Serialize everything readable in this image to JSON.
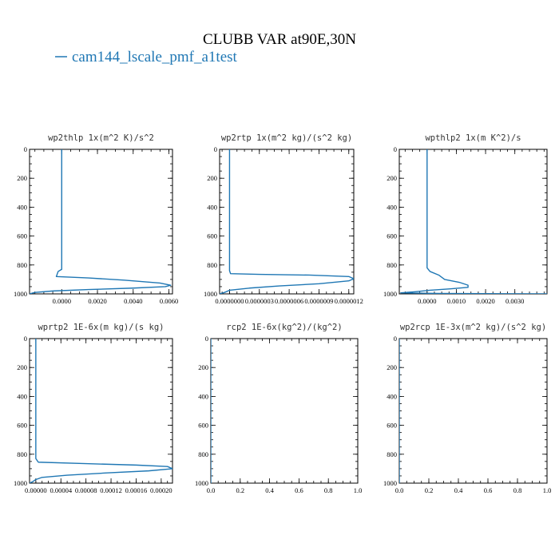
{
  "figure": {
    "title": "CLUBB VAR at90E,30N",
    "legend": [
      {
        "name": "cam144_lscale_pmf_a1test",
        "color": "#1f77b4"
      }
    ]
  },
  "chart_data": [
    {
      "type": "line",
      "title": "wp2thlp  1x(m^2 K)/s^2",
      "xlim": [
        -0.0018,
        0.0062
      ],
      "ylim": [
        0,
        1000
      ],
      "y_inverted": true,
      "xticks": [
        0.0,
        0.002,
        0.004,
        0.006
      ],
      "xticklabels": [
        "0.0000",
        "0.0020",
        "0.0040",
        "0.0060"
      ],
      "yticks": [
        0,
        200,
        400,
        600,
        800,
        1000
      ],
      "yticklabels": [
        "0",
        "200",
        "400",
        "600",
        "800",
        "1000"
      ],
      "series": [
        {
          "color": "#1f77b4",
          "x": [
            0.0,
            0.0,
            0.0,
            0.0,
            -0.0002,
            -0.0003,
            0.0015,
            0.0035,
            0.0055,
            0.0061,
            0.0058,
            0.004,
            0.0015,
            -0.0005,
            -0.0015,
            -0.0018
          ],
          "y": [
            0,
            200,
            600,
            830,
            845,
            880,
            890,
            905,
            925,
            940,
            950,
            960,
            970,
            980,
            990,
            1000
          ]
        }
      ]
    },
    {
      "type": "line",
      "title": "wp2rtp  1x(m^2 kg)/(s^2 kg)",
      "xlim": [
        -1e-07,
        1.25e-06
      ],
      "ylim": [
        0,
        1000
      ],
      "y_inverted": true,
      "xticks": [
        0.0,
        3e-07,
        6e-07,
        9e-07,
        1.2e-06
      ],
      "xticklabels": [
        "0.0000000",
        "0.0000003",
        "0.0000006",
        "0.0000009",
        "0.0000012"
      ],
      "yticks": [
        0,
        200,
        400,
        600,
        800,
        1000
      ],
      "yticklabels": [
        "0",
        "200",
        "400",
        "600",
        "800",
        "1000"
      ],
      "series": [
        {
          "color": "#1f77b4",
          "x": [
            0.0,
            0.0,
            0.0,
            0.0,
            1e-08,
            3e-07,
            8e-07,
            1.2e-06,
            1.25e-06,
            1.2e-06,
            9e-07,
            5e-07,
            2e-07,
            0.0,
            -5e-08,
            -1e-07
          ],
          "y": [
            0,
            200,
            600,
            840,
            860,
            865,
            870,
            880,
            895,
            910,
            930,
            945,
            960,
            975,
            990,
            1000
          ]
        }
      ]
    },
    {
      "type": "line",
      "title": "wpthlp2  1x(m K^2)/s",
      "xlim": [
        -0.00095,
        0.0041
      ],
      "ylim": [
        0,
        1000
      ],
      "y_inverted": true,
      "xticks": [
        0.0,
        0.001,
        0.002,
        0.003
      ],
      "xticklabels": [
        "0.0000",
        "0.0010",
        "0.0020",
        "0.0030"
      ],
      "yticks": [
        0,
        200,
        400,
        600,
        800,
        1000
      ],
      "yticklabels": [
        "0",
        "200",
        "400",
        "600",
        "800",
        "1000"
      ],
      "series": [
        {
          "color": "#1f77b4",
          "x": [
            0.0,
            0.0,
            0.0,
            0.0,
            0.0001,
            0.0004,
            0.0006,
            0.0011,
            0.0014,
            0.0014,
            0.0008,
            0.0001,
            -0.0004,
            -0.0009,
            0.0004,
            0.0041
          ],
          "y": [
            0,
            200,
            600,
            820,
            845,
            870,
            900,
            920,
            940,
            955,
            965,
            975,
            985,
            993,
            997,
            1000
          ]
        }
      ]
    },
    {
      "type": "line",
      "title": "wprtp2  1E-6x(m kg)/(s kg)",
      "xlim": [
        -1e-05,
        0.000218
      ],
      "ylim": [
        0,
        1000
      ],
      "y_inverted": true,
      "xticks": [
        0.0,
        4e-05,
        8e-05,
        0.00012,
        0.00016,
        0.0002
      ],
      "xticklabels": [
        "0.00000",
        "0.00004",
        "0.00008",
        "0.00012",
        "0.00016",
        "0.00020"
      ],
      "yticks": [
        0,
        200,
        400,
        600,
        800,
        1000
      ],
      "yticklabels": [
        "0",
        "200",
        "400",
        "600",
        "800",
        "1000"
      ],
      "series": [
        {
          "color": "#1f77b4",
          "x": [
            0.0,
            0.0,
            0.0,
            0.0,
            4e-06,
            8e-05,
            0.00016,
            0.00021,
            0.000218,
            0.00018,
            0.00011,
            5e-05,
            1e-05,
            0.0,
            -5e-06,
            -1e-05
          ],
          "y": [
            0,
            200,
            600,
            830,
            855,
            865,
            875,
            885,
            900,
            915,
            930,
            945,
            960,
            975,
            990,
            1000
          ]
        }
      ]
    },
    {
      "type": "line",
      "title": "rcp2  1E-6x(kg^2)/(kg^2)",
      "xlim": [
        0.0,
        1.0
      ],
      "ylim": [
        0,
        1000
      ],
      "y_inverted": true,
      "xticks": [
        0.0,
        0.2,
        0.4,
        0.6,
        0.8,
        1.0
      ],
      "xticklabels": [
        "0.0",
        "0.2",
        "0.4",
        "0.6",
        "0.8",
        "1.0"
      ],
      "yticks": [
        0,
        200,
        400,
        600,
        800,
        1000
      ],
      "yticklabels": [
        "0",
        "200",
        "400",
        "600",
        "800",
        "1000"
      ],
      "series": [
        {
          "color": "#1f77b4",
          "x": [
            0.0,
            0.0
          ],
          "y": [
            0,
            1000
          ]
        }
      ]
    },
    {
      "type": "line",
      "title": "wp2rcp  1E-3x(m^2 kg)/(s^2 kg)",
      "xlim": [
        0.0,
        1.0
      ],
      "ylim": [
        0,
        1000
      ],
      "y_inverted": true,
      "xticks": [
        0.0,
        0.2,
        0.4,
        0.6,
        0.8,
        1.0
      ],
      "xticklabels": [
        "0.0",
        "0.2",
        "0.4",
        "0.6",
        "0.8",
        "1.0"
      ],
      "yticks": [
        0,
        200,
        400,
        600,
        800,
        1000
      ],
      "yticklabels": [
        "0",
        "200",
        "400",
        "600",
        "800",
        "1000"
      ],
      "series": [
        {
          "color": "#1f77b4",
          "x": [
            0.0,
            0.0
          ],
          "y": [
            0,
            1000
          ]
        }
      ]
    }
  ]
}
